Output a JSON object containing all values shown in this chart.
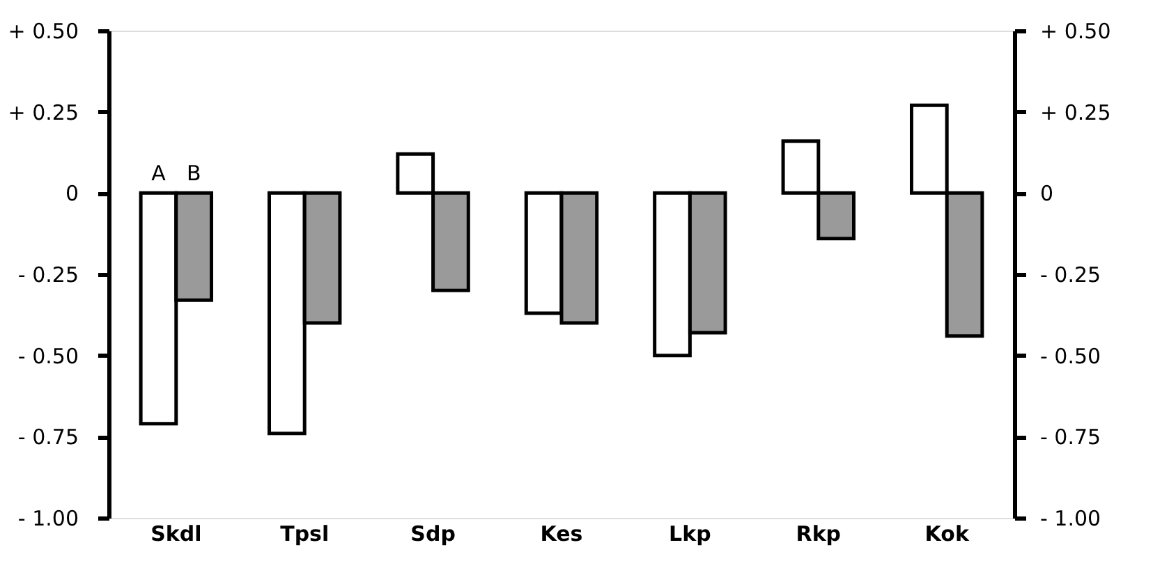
{
  "chart_data": {
    "type": "bar",
    "categories": [
      "Skdl",
      "Tpsl",
      "Sdp",
      "Kes",
      "Lkp",
      "Rkp",
      "Kok"
    ],
    "series": [
      {
        "name": "A",
        "color": "#ffffff",
        "values": [
          -0.71,
          -0.74,
          0.12,
          -0.37,
          -0.5,
          0.16,
          0.27
        ]
      },
      {
        "name": "B",
        "color": "#9a9a9a",
        "values": [
          -0.33,
          -0.4,
          -0.3,
          -0.4,
          -0.43,
          -0.14,
          -0.44
        ]
      }
    ],
    "ylim": [
      -1.0,
      0.5
    ],
    "yticks": [
      {
        "value": 0.5,
        "label": "+ 0.50"
      },
      {
        "value": 0.25,
        "label": "+ 0.25"
      },
      {
        "value": 0,
        "label": "0"
      },
      {
        "value": -0.25,
        "label": "- 0.25"
      },
      {
        "value": -0.5,
        "label": "- 0.50"
      },
      {
        "value": -0.75,
        "label": "- 0.75"
      },
      {
        "value": -1.0,
        "label": "- 1.00"
      }
    ],
    "y2lim": [
      -1.0,
      0.5
    ],
    "y2ticks": [
      {
        "value": 0.5,
        "label": "+ 0.50"
      },
      {
        "value": 0.25,
        "label": "+ 0.25"
      },
      {
        "value": 0,
        "label": "0"
      },
      {
        "value": -0.25,
        "label": "- 0.25"
      },
      {
        "value": -0.5,
        "label": "- 0.50"
      },
      {
        "value": -0.75,
        "label": "- 0.75"
      },
      {
        "value": -1.0,
        "label": "- 1.00"
      }
    ],
    "grid": false,
    "legend": false
  }
}
